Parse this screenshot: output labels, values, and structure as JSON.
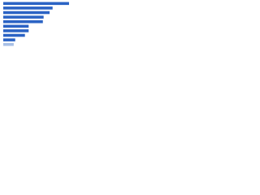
{
  "chart_data": {
    "type": "bar",
    "orientation": "horizontal",
    "values": [
      88,
      66,
      62,
      54,
      53,
      34,
      34,
      29,
      16,
      14
    ],
    "colors": [
      "#2b63c4",
      "#2b63c4",
      "#2b63c4",
      "#2b63c4",
      "#2b63c4",
      "#2b63c4",
      "#2b63c4",
      "#2b63c4",
      "#2b63c4",
      "#a7bfe6"
    ],
    "xlim": [
      0,
      100
    ]
  }
}
